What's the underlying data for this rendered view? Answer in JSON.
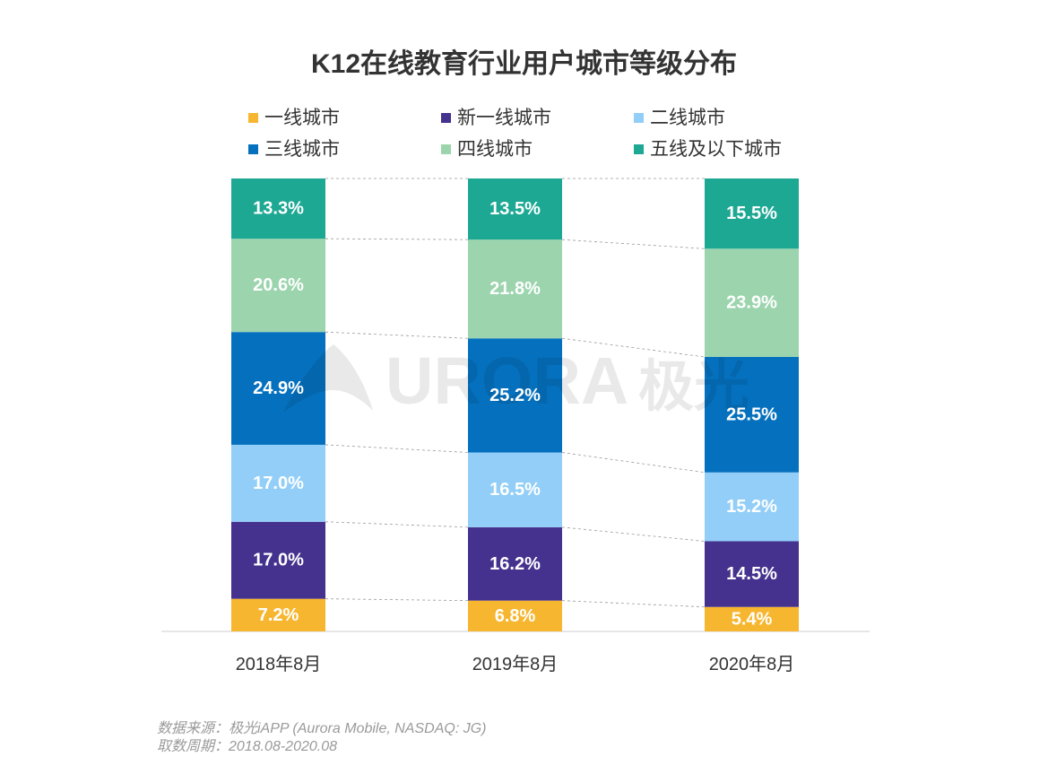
{
  "chart_data": {
    "type": "bar",
    "stacked": true,
    "title": "K12在线教育行业用户城市等级分布",
    "categories": [
      "2018年8月",
      "2019年8月",
      "2020年8月"
    ],
    "series": [
      {
        "name": "一线城市",
        "color": "#F6B62F",
        "values": [
          7.2,
          6.8,
          5.4
        ]
      },
      {
        "name": "新一线城市",
        "color": "#45318E",
        "values": [
          17.0,
          16.2,
          14.5
        ]
      },
      {
        "name": "二线城市",
        "color": "#92CEF7",
        "values": [
          17.0,
          16.5,
          15.2
        ]
      },
      {
        "name": "三线城市",
        "color": "#0571BE",
        "values": [
          24.9,
          25.2,
          25.5
        ]
      },
      {
        "name": "四线城市",
        "color": "#9BD4AD",
        "values": [
          20.6,
          21.8,
          23.9
        ]
      },
      {
        "name": "五线及以下城市",
        "color": "#1DA894",
        "values": [
          13.3,
          13.5,
          15.5
        ]
      }
    ],
    "unit": "%",
    "ylim": [
      0,
      100
    ],
    "legend": "top",
    "grid": false
  },
  "footer": {
    "source": "数据来源：极光iAPP (Aurora Mobile, NASDAQ: JG)",
    "period": "取数周期：2018.08-2020.08"
  },
  "watermark": {
    "text": "URORA",
    "text_cn": "极光"
  }
}
